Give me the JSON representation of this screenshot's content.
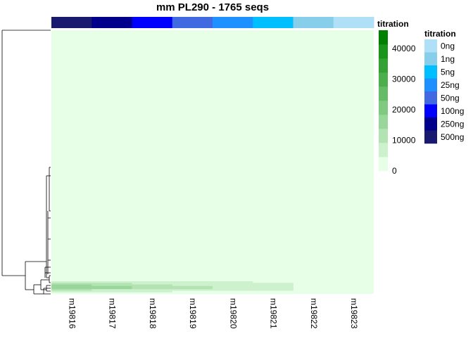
{
  "chart_data": {
    "type": "heatmap",
    "title": "mm PL290 - 1765 seqs",
    "columns": [
      "m19816",
      "m19817",
      "m19818",
      "m19819",
      "m19820",
      "m19821",
      "m19822",
      "m19823"
    ],
    "column_annotation": {
      "name": "titration",
      "values": [
        "500ng",
        "250ng",
        "100ng",
        "50ng",
        "25ng",
        "5ng",
        "1ng",
        "0ng"
      ]
    },
    "color_scale": {
      "name": "titration",
      "ticks": [
        0,
        10000,
        20000,
        30000,
        40000
      ],
      "range": [
        0,
        46000
      ],
      "colors": [
        "#e6ffe6",
        "#cdf0cd",
        "#b3e3b3",
        "#99d699",
        "#80c980",
        "#66bc66",
        "#4dae4d",
        "#33a133",
        "#1a941a",
        "#008000"
      ]
    },
    "legend": {
      "title": "titration",
      "items": [
        {
          "label": "0ng",
          "color": "#b0e0f8"
        },
        {
          "label": "1ng",
          "color": "#87ceeb"
        },
        {
          "label": "5ng",
          "color": "#00bfff"
        },
        {
          "label": "25ng",
          "color": "#1e90ff"
        },
        {
          "label": "50ng",
          "color": "#4169e1"
        },
        {
          "label": "100ng",
          "color": "#0000ff"
        },
        {
          "label": "250ng",
          "color": "#00008b"
        },
        {
          "label": "500ng",
          "color": "#191970"
        }
      ]
    },
    "rows": {
      "count": 1765,
      "background_value": 0,
      "high_count_band": [
        [
          9000,
          8000,
          6000,
          7000,
          5000,
          4000,
          0,
          0
        ],
        [
          12000,
          11000,
          9000,
          8000,
          7000,
          6000,
          0,
          0
        ],
        [
          14000,
          13000,
          10000,
          9000,
          8000,
          7000,
          0,
          0
        ],
        [
          18000,
          17000,
          12000,
          11000,
          9000,
          8000,
          0,
          0
        ],
        [
          15000,
          14000,
          11000,
          10000,
          8000,
          7000,
          0,
          0
        ],
        [
          10000,
          9000,
          7000,
          7000,
          6000,
          5000,
          0,
          0
        ],
        [
          7000,
          6000,
          5000,
          4000,
          3000,
          3000,
          0,
          0
        ],
        [
          4000,
          3000,
          2000,
          2000,
          1000,
          1000,
          0,
          0
        ]
      ]
    }
  }
}
